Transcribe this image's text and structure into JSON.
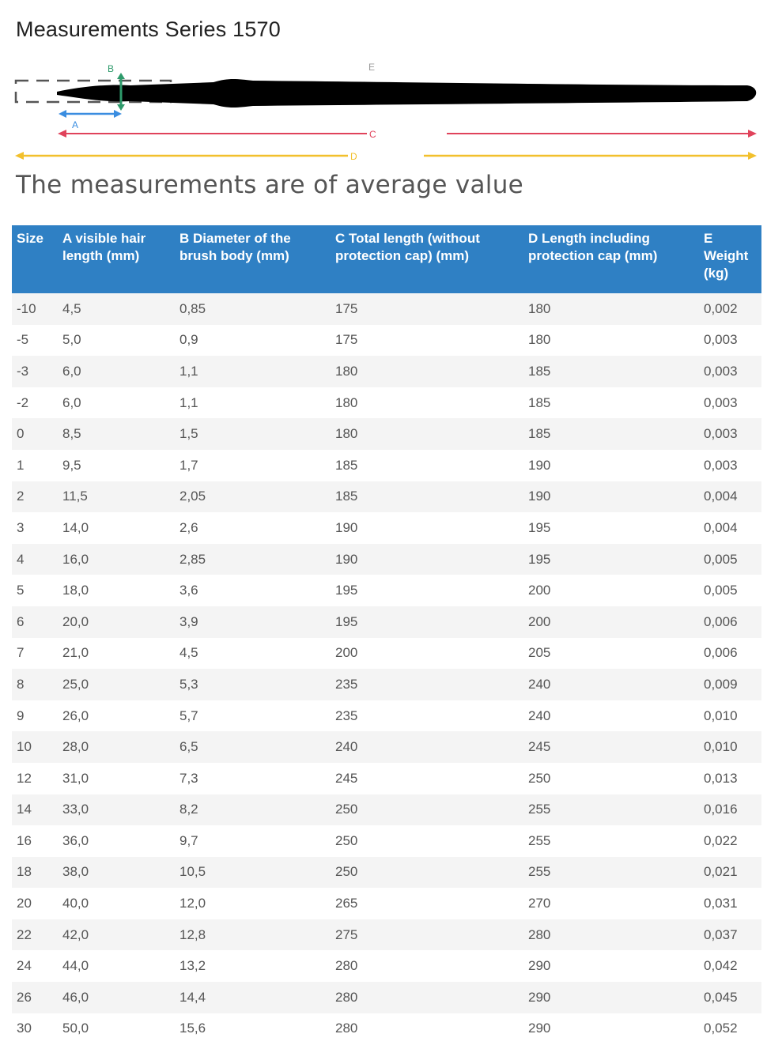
{
  "page": {
    "title": "Measurements Series 1570",
    "subtitle": "The measurements are of average value"
  },
  "diagram": {
    "labels": {
      "a": "A",
      "b": "B",
      "c": "C",
      "d": "D",
      "e": "E"
    },
    "colors": {
      "a": "#3a8de0",
      "b": "#2e9a6b",
      "c": "#e0435b",
      "d": "#f2c02c",
      "e": "#999999",
      "brush": "#000000"
    }
  },
  "table": {
    "headers": [
      "Size",
      "A visible hair length (mm)",
      "B Diameter of the brush body (mm)",
      "C Total length (without protection cap) (mm)",
      "D Length including protection cap (mm)",
      "E Weight (kg)"
    ],
    "rows": [
      [
        "-10",
        "4,5",
        "0,85",
        "175",
        "180",
        "0,002"
      ],
      [
        "-5",
        "5,0",
        "0,9",
        "175",
        "180",
        "0,003"
      ],
      [
        "-3",
        "6,0",
        "1,1",
        "180",
        "185",
        "0,003"
      ],
      [
        "-2",
        "6,0",
        "1,1",
        "180",
        "185",
        "0,003"
      ],
      [
        "0",
        "8,5",
        "1,5",
        "180",
        "185",
        "0,003"
      ],
      [
        "1",
        "9,5",
        "1,7",
        "185",
        "190",
        "0,003"
      ],
      [
        "2",
        "11,5",
        "2,05",
        "185",
        "190",
        "0,004"
      ],
      [
        "3",
        "14,0",
        "2,6",
        "190",
        "195",
        "0,004"
      ],
      [
        "4",
        "16,0",
        "2,85",
        "190",
        "195",
        "0,005"
      ],
      [
        "5",
        "18,0",
        "3,6",
        "195",
        "200",
        "0,005"
      ],
      [
        "6",
        "20,0",
        "3,9",
        "195",
        "200",
        "0,006"
      ],
      [
        "7",
        "21,0",
        "4,5",
        "200",
        "205",
        "0,006"
      ],
      [
        "8",
        "25,0",
        "5,3",
        "235",
        "240",
        "0,009"
      ],
      [
        "9",
        "26,0",
        "5,7",
        "235",
        "240",
        "0,010"
      ],
      [
        "10",
        "28,0",
        "6,5",
        "240",
        "245",
        "0,010"
      ],
      [
        "12",
        "31,0",
        "7,3",
        "245",
        "250",
        "0,013"
      ],
      [
        "14",
        "33,0",
        "8,2",
        "250",
        "255",
        "0,016"
      ],
      [
        "16",
        "36,0",
        "9,7",
        "250",
        "255",
        "0,022"
      ],
      [
        "18",
        "38,0",
        "10,5",
        "250",
        "255",
        "0,021"
      ],
      [
        "20",
        "40,0",
        "12,0",
        "265",
        "270",
        "0,031"
      ],
      [
        "22",
        "42,0",
        "12,8",
        "275",
        "280",
        "0,037"
      ],
      [
        "24",
        "44,0",
        "13,2",
        "280",
        "290",
        "0,042"
      ],
      [
        "26",
        "46,0",
        "14,4",
        "280",
        "290",
        "0,045"
      ],
      [
        "30",
        "50,0",
        "15,6",
        "280",
        "290",
        "0,052"
      ]
    ]
  }
}
